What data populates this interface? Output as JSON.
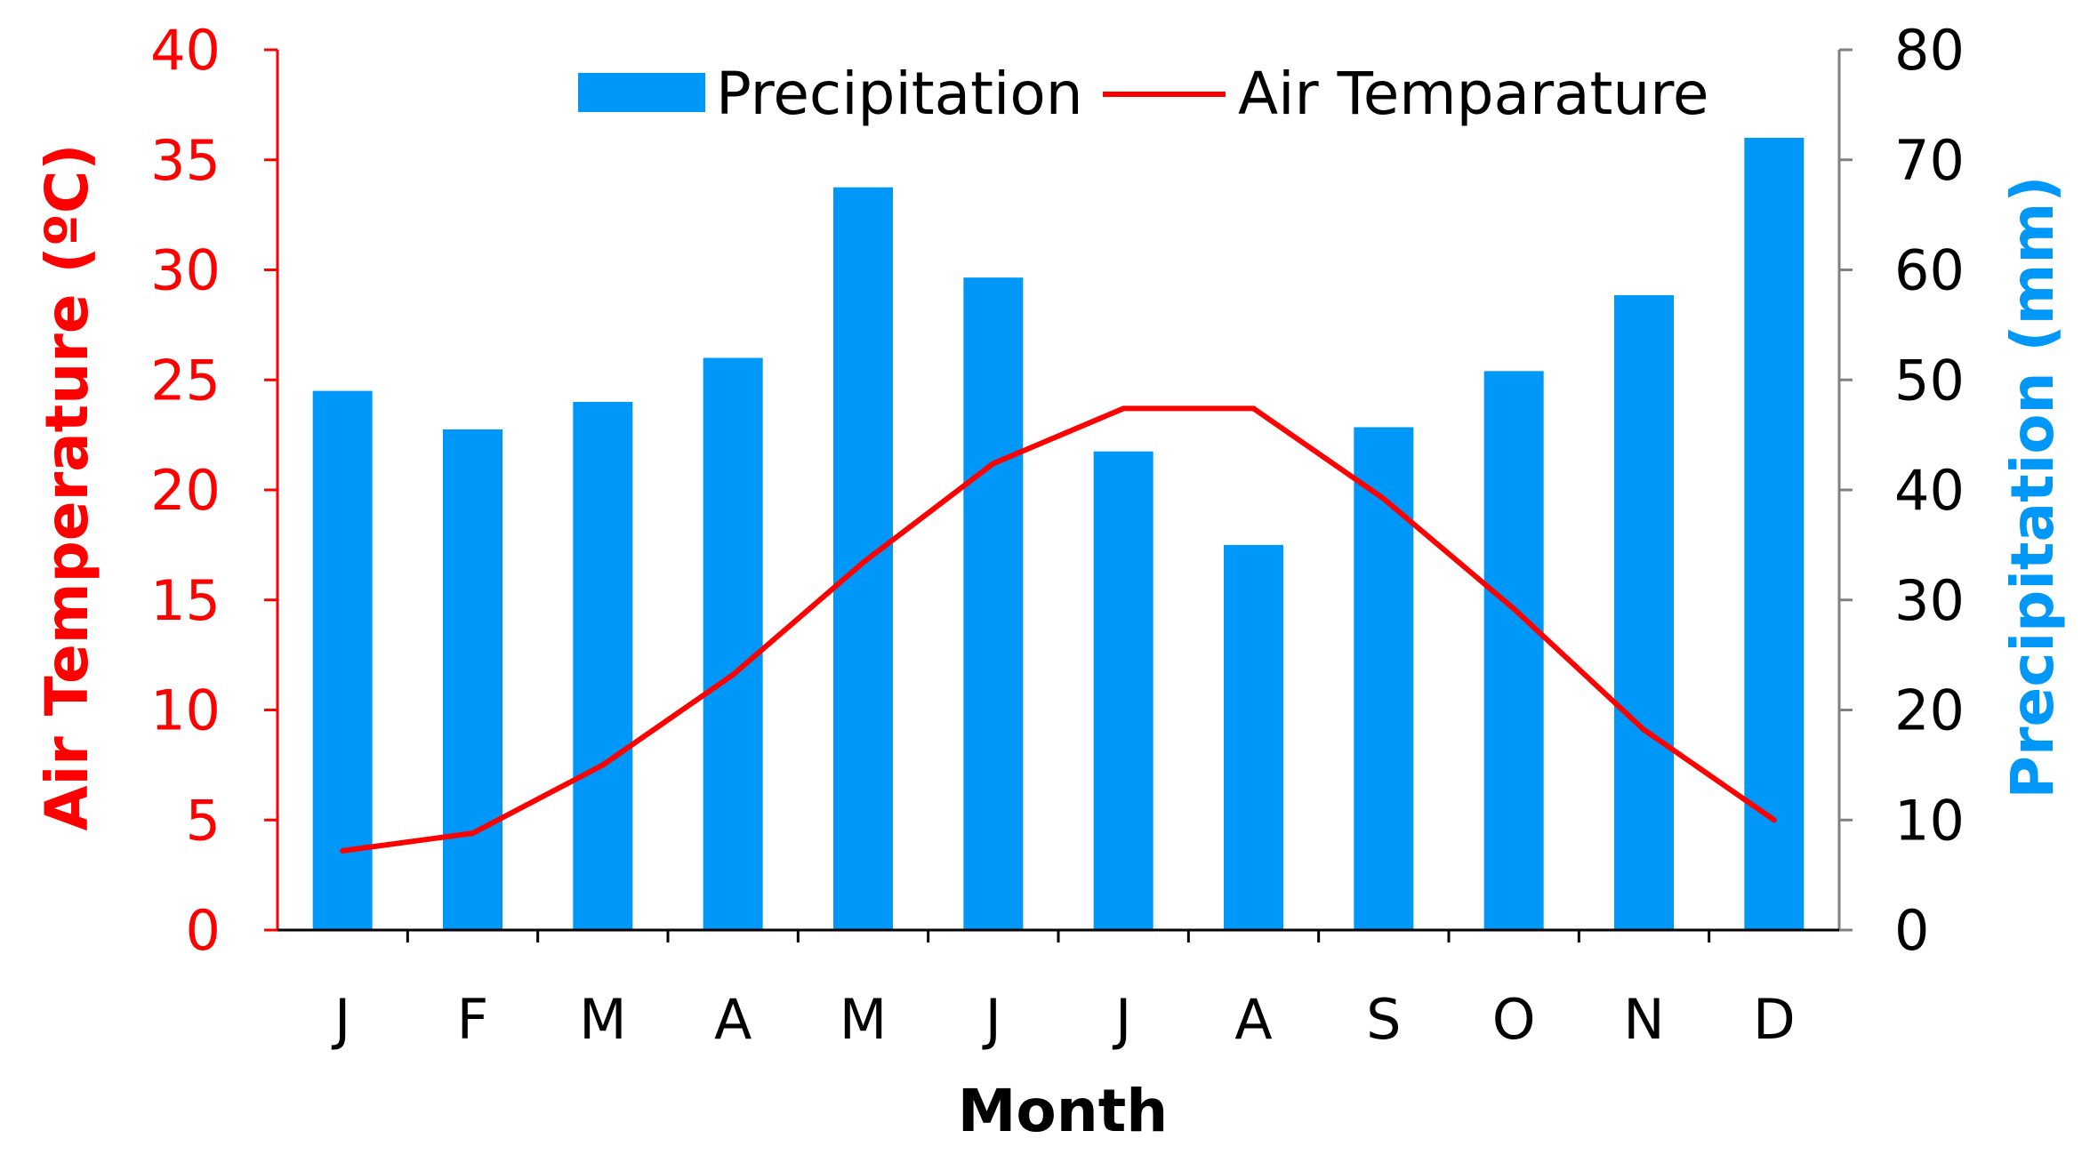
{
  "chart_data": {
    "type": "bar",
    "categories": [
      "J",
      "F",
      "M",
      "A",
      "M",
      "J",
      "J",
      "A",
      "S",
      "O",
      "N",
      "D"
    ],
    "series": [
      {
        "name": "Precipitation",
        "type": "bar",
        "axis": "right",
        "color": "#0098f8",
        "values": [
          49,
          45.5,
          48,
          52,
          67.5,
          59.3,
          43.5,
          35,
          45.7,
          50.8,
          57.7,
          72
        ]
      },
      {
        "name": "Air Temparature",
        "type": "line",
        "axis": "left",
        "color": "#ff0000",
        "values": [
          3.6,
          4.4,
          7.5,
          11.6,
          16.7,
          21.2,
          23.7,
          23.7,
          19.6,
          14.6,
          9.1,
          5.0
        ]
      }
    ],
    "left_axis": {
      "label": "Air Temperature (ºC)",
      "ylim": [
        0,
        40
      ],
      "ticks": [
        "0",
        "5",
        "10",
        "15",
        "20",
        "25",
        "30",
        "35",
        "40"
      ],
      "color": "#ff0000"
    },
    "right_axis": {
      "label": "Precipitation (mm)",
      "ylim": [
        0,
        80
      ],
      "ticks": [
        "0",
        "10",
        "20",
        "30",
        "40",
        "50",
        "60",
        "70",
        "80"
      ],
      "color": "#0098f8"
    },
    "xlabel": "Month",
    "legend": "top-center",
    "grid": false
  }
}
